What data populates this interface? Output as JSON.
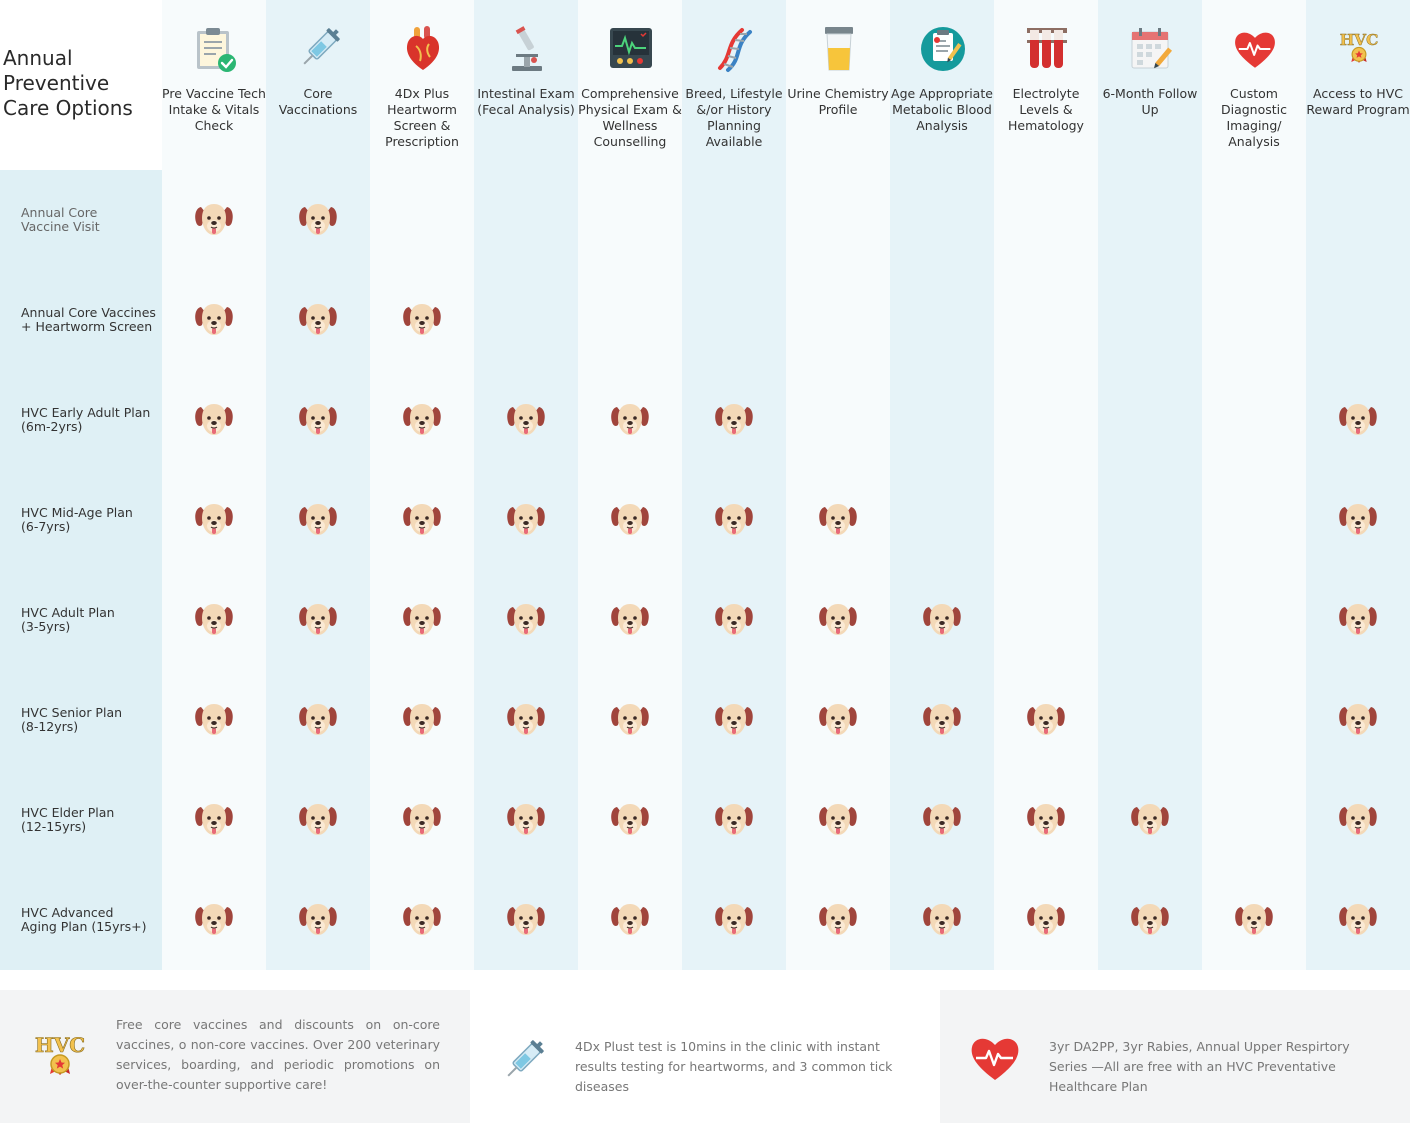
{
  "title": "Annual Preventive Care Options",
  "columns": [
    {
      "label": "Pre Vaccine Tech Intake & Vitals Check",
      "icon": "clipboard-check-icon"
    },
    {
      "label": "Core Vaccinations",
      "icon": "syringe-icon"
    },
    {
      "label": "4Dx Plus Heartworm Screen & Prescription",
      "icon": "heart-organ-icon"
    },
    {
      "label": "Intestinal Exam (Fecal Analysis)",
      "icon": "microscope-icon"
    },
    {
      "label": "Comprehensive Physical Exam & Wellness Counselling",
      "icon": "vitals-monitor-icon"
    },
    {
      "label": "Breed, Lifestyle &/or History Planning Available",
      "icon": "dna-icon"
    },
    {
      "label": "Urine Chemistry Profile",
      "icon": "urine-cup-icon"
    },
    {
      "label": "Age Appropriate Metabolic Blood Analysis",
      "icon": "medical-report-icon"
    },
    {
      "label": "Electrolyte Levels & Hematology",
      "icon": "test-tubes-icon"
    },
    {
      "label": "6-Month Follow Up",
      "icon": "calendar-icon"
    },
    {
      "label": "Custom Diagnostic Imaging/ Analysis",
      "icon": "heartbeat-icon"
    },
    {
      "label": "Access to HVC Reward Program",
      "icon": "hvc-award-logo"
    }
  ],
  "rows": [
    {
      "label": "Annual Core\nVaccine Visit",
      "included": [
        1,
        1,
        0,
        0,
        0,
        0,
        0,
        0,
        0,
        0,
        0,
        0
      ]
    },
    {
      "label": "Annual Core Vaccines\n+ Heartworm Screen",
      "included": [
        1,
        1,
        1,
        0,
        0,
        0,
        0,
        0,
        0,
        0,
        0,
        0
      ]
    },
    {
      "label": "HVC Early Adult Plan\n(6m-2yrs)",
      "included": [
        1,
        1,
        1,
        1,
        1,
        1,
        0,
        0,
        0,
        0,
        0,
        1
      ]
    },
    {
      "label": "HVC Mid-Age Plan\n(6-7yrs)",
      "included": [
        1,
        1,
        1,
        1,
        1,
        1,
        1,
        0,
        0,
        0,
        0,
        1
      ]
    },
    {
      "label": "HVC Adult Plan\n(3-5yrs)",
      "included": [
        1,
        1,
        1,
        1,
        1,
        1,
        1,
        1,
        0,
        0,
        0,
        1
      ]
    },
    {
      "label": "HVC Senior Plan\n(8-12yrs)",
      "included": [
        1,
        1,
        1,
        1,
        1,
        1,
        1,
        1,
        1,
        0,
        0,
        1
      ]
    },
    {
      "label": "HVC Elder Plan\n(12-15yrs)",
      "included": [
        1,
        1,
        1,
        1,
        1,
        1,
        1,
        1,
        1,
        1,
        0,
        1
      ]
    },
    {
      "label": "HVC Advanced\nAging Plan (15yrs+)",
      "included": [
        1,
        1,
        1,
        1,
        1,
        1,
        1,
        1,
        1,
        1,
        1,
        1
      ]
    }
  ],
  "check_icon": "dog-face-icon",
  "footer": [
    {
      "icon": "hvc-award-logo",
      "text": "Free core vaccines and discounts on on-core vaccines, o non-core vaccines. Over 200 veterinary services, boarding, and periodic promotions on over-the-counter supportive care!"
    },
    {
      "icon": "syringe-icon",
      "text": "4Dx Plust test is 10mins in the clinic with instant results testing for heartworms, and 3 common tick diseases"
    },
    {
      "icon": "heartbeat-icon",
      "text": "3yr DA2PP, 3yr Rabies, Annual Upper Respirtory Series —All are free with an HVC Preventative Healthcare Plan"
    }
  ],
  "colors": {
    "col_dark": "#e6f3f8",
    "col_light": "#f7fbfc",
    "rowhead": "#dff0f5",
    "footer_gray": "#f3f4f5",
    "heart_red": "#e53935"
  }
}
